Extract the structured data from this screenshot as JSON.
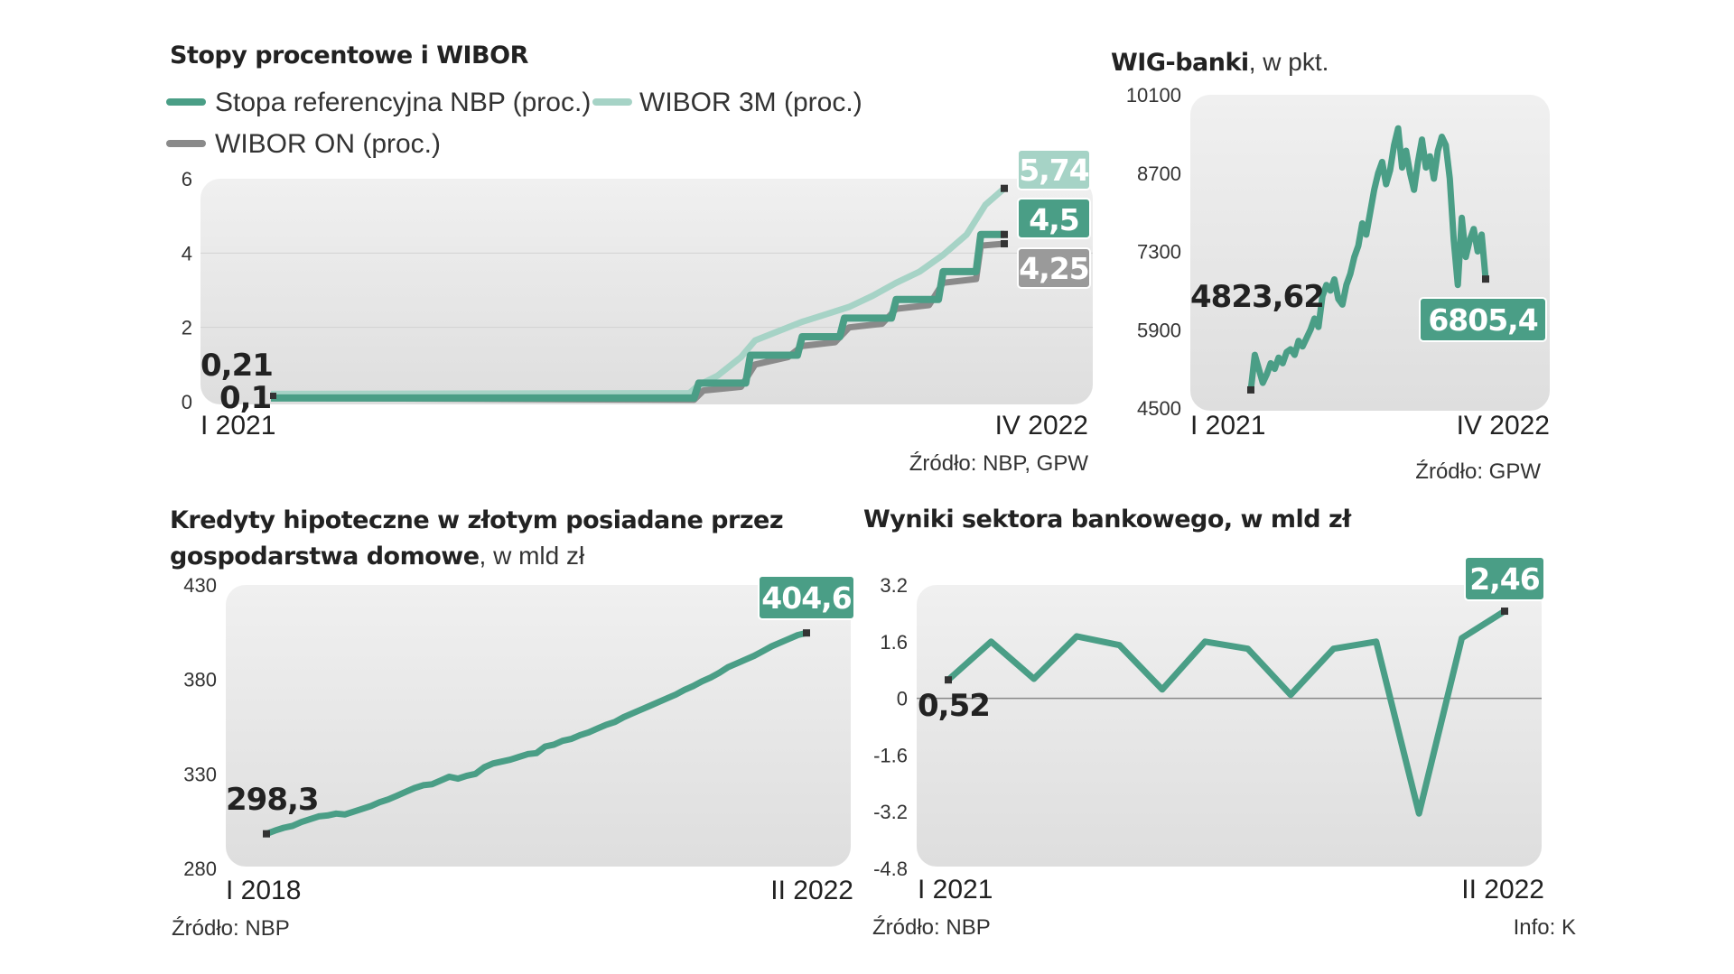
{
  "colors": {
    "nbp": "#4a9e86",
    "wibor3m": "#a6d3c6",
    "wiboron": "#8a8a8a",
    "panel_top": "#eeeeee",
    "panel_bottom": "#e0e0e0",
    "badge_gray": "#9a9a9a"
  },
  "chart_data": [
    {
      "type": "line",
      "title": "Stopy procentowe i WIBOR",
      "legend": [
        "Stopa referencyjna NBP (proc.)",
        "WIBOR 3M (proc.)",
        "WIBOR ON (proc.)"
      ],
      "legend_placement": "top-left",
      "ylim": [
        0,
        6
      ],
      "yticks": [
        "0",
        "2",
        "4",
        "6"
      ],
      "x_start": "I 2021",
      "x_end": "IV 2022",
      "source": "Źródło: NBP, GPW",
      "start_labels": [
        "0,21",
        "0,1"
      ],
      "end_labels": {
        "wibor3m": "5,74",
        "nbp": "4,5",
        "wiboron": "4,25"
      },
      "months": [
        "2021-01",
        "2021-02",
        "2021-03",
        "2021-04",
        "2021-05",
        "2021-06",
        "2021-07",
        "2021-08",
        "2021-09",
        "2021-10",
        "2021-11",
        "2021-12",
        "2022-01",
        "2022-02",
        "2022-03",
        "2022-04"
      ],
      "series": [
        {
          "name": "Stopa referencyjna NBP (proc.)",
          "key": "nbp",
          "points": [
            [
              0,
              0.1
            ],
            [
              9.0,
              0.1
            ],
            [
              9.1,
              0.5
            ],
            [
              10.1,
              0.5
            ],
            [
              10.2,
              1.25
            ],
            [
              11.2,
              1.25
            ],
            [
              11.3,
              1.75
            ],
            [
              12.1,
              1.75
            ],
            [
              12.2,
              2.25
            ],
            [
              13.2,
              2.25
            ],
            [
              13.3,
              2.75
            ],
            [
              14.2,
              2.75
            ],
            [
              14.3,
              3.5
            ],
            [
              15.0,
              3.5
            ],
            [
              15.1,
              4.5
            ],
            [
              15.6,
              4.5
            ]
          ]
        },
        {
          "name": "WIBOR 3M (proc.)",
          "key": "wibor3m",
          "points": [
            [
              0,
              0.21
            ],
            [
              8.9,
              0.23
            ],
            [
              9.1,
              0.45
            ],
            [
              9.5,
              0.7
            ],
            [
              10.0,
              1.2
            ],
            [
              10.3,
              1.65
            ],
            [
              10.8,
              1.9
            ],
            [
              11.3,
              2.15
            ],
            [
              11.8,
              2.35
            ],
            [
              12.3,
              2.55
            ],
            [
              12.8,
              2.85
            ],
            [
              13.3,
              3.2
            ],
            [
              13.8,
              3.5
            ],
            [
              14.3,
              3.95
            ],
            [
              14.8,
              4.5
            ],
            [
              15.2,
              5.3
            ],
            [
              15.6,
              5.74
            ]
          ]
        },
        {
          "name": "WIBOR ON (proc.)",
          "key": "wiboron",
          "points": [
            [
              0,
              0.1
            ],
            [
              9.0,
              0.05
            ],
            [
              9.2,
              0.3
            ],
            [
              10.0,
              0.4
            ],
            [
              10.3,
              1.0
            ],
            [
              11.0,
              1.2
            ],
            [
              11.3,
              1.5
            ],
            [
              12.0,
              1.6
            ],
            [
              12.3,
              2.0
            ],
            [
              13.0,
              2.1
            ],
            [
              13.3,
              2.5
            ],
            [
              14.0,
              2.6
            ],
            [
              14.3,
              3.2
            ],
            [
              15.0,
              3.3
            ],
            [
              15.1,
              4.2
            ],
            [
              15.6,
              4.25
            ]
          ]
        }
      ]
    },
    {
      "type": "line",
      "title": "WIG-banki",
      "subtitle": ", w pkt.",
      "ylim": [
        4500,
        10100
      ],
      "yticks": [
        "4500",
        "5900",
        "7300",
        "8700",
        "10100"
      ],
      "x_start": "I 2021",
      "x_end": "IV 2022",
      "source": "Źródło: GPW",
      "start_label": "4823,62",
      "end_label": "6805,4",
      "series": [
        {
          "name": "WIG-banki",
          "values": [
            4823.62,
            5450,
            5200,
            4950,
            5100,
            5300,
            5200,
            5400,
            5300,
            5500,
            5550,
            5450,
            5700,
            5600,
            5750,
            5900,
            6100,
            5950,
            6500,
            6700,
            6600,
            6800,
            6450,
            6350,
            6700,
            6900,
            7200,
            7400,
            7800,
            7600,
            8000,
            8400,
            8700,
            8900,
            8500,
            8750,
            9200,
            9500,
            8800,
            9100,
            8700,
            8400,
            8900,
            9300,
            8800,
            9000,
            8600,
            9100,
            9350,
            9200,
            8600,
            7500,
            6700,
            7900,
            7200,
            7500,
            7700,
            7300,
            7600,
            6805.4
          ]
        }
      ]
    },
    {
      "type": "line",
      "title": "Kredyty hipoteczne w złotym posiadane przez gospodarstwa domowe",
      "subtitle": ", w mld zł",
      "ylim": [
        280,
        430
      ],
      "yticks": [
        "280",
        "330",
        "380",
        "430"
      ],
      "x_start": "I 2018",
      "x_end": "II 2022",
      "source": "Źródło: NBP",
      "start_label": "298,3",
      "end_label": "404,6",
      "series": [
        {
          "name": "Kredyty hipoteczne",
          "values": [
            298.3,
            300.0,
            301.5,
            302.5,
            304.5,
            306.0,
            307.5,
            308.0,
            309.0,
            308.5,
            310.0,
            311.5,
            313.0,
            315.0,
            316.5,
            318.5,
            320.5,
            322.5,
            324.0,
            324.5,
            326.5,
            328.5,
            327.5,
            329.0,
            330.0,
            333.5,
            335.5,
            336.5,
            337.5,
            339.0,
            340.5,
            341.0,
            344.5,
            345.5,
            347.5,
            348.5,
            350.5,
            352.0,
            354.0,
            356.0,
            357.5,
            360.0,
            362.0,
            364.0,
            366.0,
            368.0,
            370.0,
            372.0,
            374.5,
            376.5,
            379.0,
            381.0,
            383.5,
            386.5,
            388.5,
            390.5,
            392.5,
            395.0,
            397.5,
            399.5,
            401.5,
            403.5,
            404.6
          ]
        }
      ]
    },
    {
      "type": "line",
      "title": "Wyniki sektora bankowego, w mld zł",
      "ylim": [
        -4.8,
        3.2
      ],
      "yticks": [
        "3.2",
        "1.6",
        "0",
        "-1.6",
        "-3.2",
        "-4.8"
      ],
      "x_start": "I 2021",
      "x_end": "II 2022",
      "source": "Źródło: NBP",
      "info": "Info: K",
      "start_label": "0,52",
      "end_label": "2,46",
      "series": [
        {
          "name": "Wyniki sektora bankowego",
          "values": [
            0.52,
            1.6,
            0.55,
            1.75,
            1.5,
            0.25,
            1.6,
            1.4,
            0.1,
            1.4,
            1.6,
            -3.25,
            1.7,
            2.46
          ]
        }
      ]
    }
  ]
}
